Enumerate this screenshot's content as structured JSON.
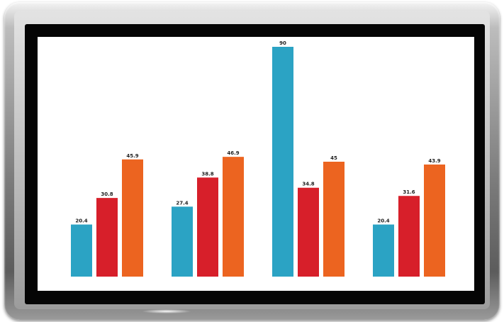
{
  "chart_data": {
    "type": "bar",
    "title": "",
    "xlabel": "",
    "ylabel": "",
    "categories": [
      "",
      "",
      "",
      ""
    ],
    "ylim": [
      0,
      100
    ],
    "grid": false,
    "legend": "none",
    "series": [
      {
        "color": "#2ba3c4",
        "values": [
          20.4,
          27.4,
          90,
          20.4
        ],
        "labels": [
          "20.4",
          "27.4",
          "90",
          "20.4"
        ]
      },
      {
        "color": "#d71f2a",
        "values": [
          30.8,
          38.8,
          34.8,
          31.6
        ],
        "labels": [
          "30.8",
          "38.8",
          "34.8",
          "31.6"
        ]
      },
      {
        "color": "#ec6420",
        "values": [
          45.9,
          46.9,
          45,
          43.9
        ],
        "labels": [
          "45.9",
          "46.9",
          "45",
          "43.9"
        ]
      }
    ]
  }
}
